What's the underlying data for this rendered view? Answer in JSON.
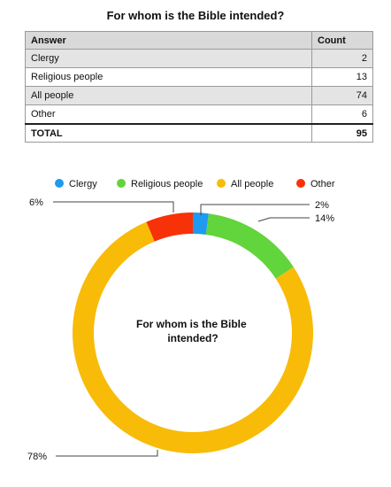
{
  "table": {
    "title": "For whom is the Bible intended?",
    "headers": [
      "Answer",
      "Count"
    ],
    "rows": [
      {
        "answer": "Clergy",
        "count": "2"
      },
      {
        "answer": "Religious people",
        "count": "13"
      },
      {
        "answer": "All people",
        "count": "74"
      },
      {
        "answer": "Other",
        "count": "6"
      }
    ],
    "total_label": "TOTAL",
    "total_value": "95"
  },
  "chart_data": {
    "type": "pie",
    "title": "For whom is the Bible intended?",
    "categories": [
      "Clergy",
      "Religious people",
      "All people",
      "Other"
    ],
    "values": [
      2,
      13,
      74,
      6
    ],
    "percent_labels": [
      "2%",
      "14%",
      "78%",
      "6%"
    ],
    "colors": [
      "#1f9af0",
      "#62d43c",
      "#f8bb08",
      "#f73208"
    ],
    "legend": "top",
    "donut": true
  }
}
